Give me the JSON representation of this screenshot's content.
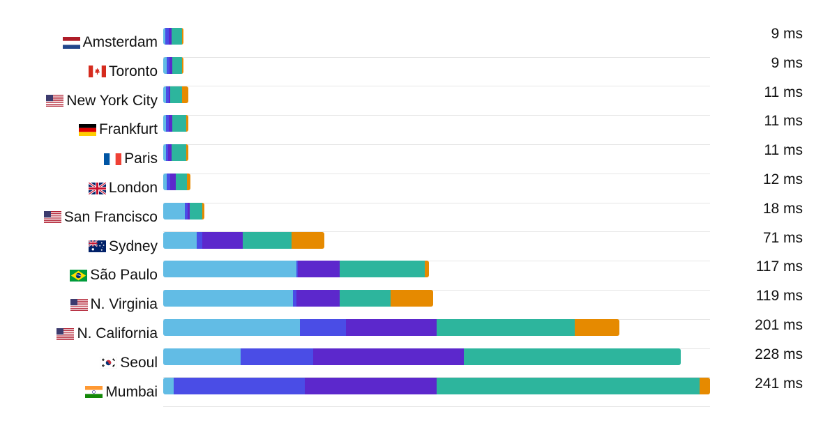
{
  "chart_data": {
    "type": "bar",
    "orientation": "horizontal",
    "stacked": true,
    "xlim": [
      0,
      241
    ],
    "grid": false,
    "legend": "none",
    "title": "",
    "xlabel": "",
    "ylabel": "",
    "unit": "ms",
    "series_colors": [
      "#62bce5",
      "#4a4de6",
      "#5c28cc",
      "#2db59d",
      "#e68a00"
    ],
    "categories": [
      {
        "city": "Amsterdam",
        "flag": "netherlands-flag-icon",
        "total_label": "9 ms",
        "total": 9,
        "segments": [
          1,
          1.4,
          1.2,
          4.7,
          0.7
        ]
      },
      {
        "city": "Toronto",
        "flag": "canada-flag-icon",
        "total_label": "9 ms",
        "total": 9,
        "segments": [
          1.6,
          1.2,
          1.2,
          4.4,
          0.6
        ]
      },
      {
        "city": "New York City",
        "flag": "usa-flag-icon",
        "total_label": "11 ms",
        "total": 11,
        "segments": [
          1.3,
          1.2,
          0.5,
          5.3,
          2.7
        ]
      },
      {
        "city": "Frankfurt",
        "flag": "germany-flag-icon",
        "total_label": "11 ms",
        "total": 11,
        "segments": [
          1.1,
          1.3,
          1.7,
          6.2,
          0.7
        ]
      },
      {
        "city": "Paris",
        "flag": "france-flag-icon",
        "total_label": "11 ms",
        "total": 11,
        "segments": [
          1.1,
          1,
          1.7,
          6.5,
          0.7
        ]
      },
      {
        "city": "London",
        "flag": "uk-flag-icon",
        "total_label": "12 ms",
        "total": 12,
        "segments": [
          1.5,
          1.6,
          2.4,
          4.9,
          1.6
        ]
      },
      {
        "city": "San Francisco",
        "flag": "usa-flag-icon",
        "total_label": "18 ms",
        "total": 18,
        "segments": [
          9.6,
          1.3,
          0.8,
          5.5,
          0.8
        ]
      },
      {
        "city": "Sydney",
        "flag": "australia-flag-icon",
        "total_label": "71 ms",
        "total": 71,
        "segments": [
          14.8,
          2.5,
          17.6,
          21.6,
          14.5
        ]
      },
      {
        "city": "São Paulo",
        "flag": "brazil-flag-icon",
        "total_label": "117 ms",
        "total": 117,
        "segments": [
          58.7,
          0.6,
          18.5,
          37.5,
          1.7
        ]
      },
      {
        "city": "N. Virginia",
        "flag": "usa-flag-icon",
        "total_label": "119 ms",
        "total": 119,
        "segments": [
          57.1,
          1.7,
          18.9,
          22.6,
          18.7
        ]
      },
      {
        "city": "N. California",
        "flag": "usa-flag-icon",
        "total_label": "201 ms",
        "total": 201,
        "segments": [
          60.3,
          20.1,
          40.2,
          60.9,
          19.5
        ]
      },
      {
        "city": "Seoul",
        "flag": "south-korea-flag-icon",
        "total_label": "228 ms",
        "total": 228,
        "segments": [
          34,
          32.1,
          66.3,
          95.6,
          0
        ]
      },
      {
        "city": "Mumbai",
        "flag": "india-flag-icon",
        "total_label": "241 ms",
        "total": 241,
        "segments": [
          4.6,
          57.8,
          58.2,
          115.8,
          4.6
        ]
      }
    ]
  }
}
